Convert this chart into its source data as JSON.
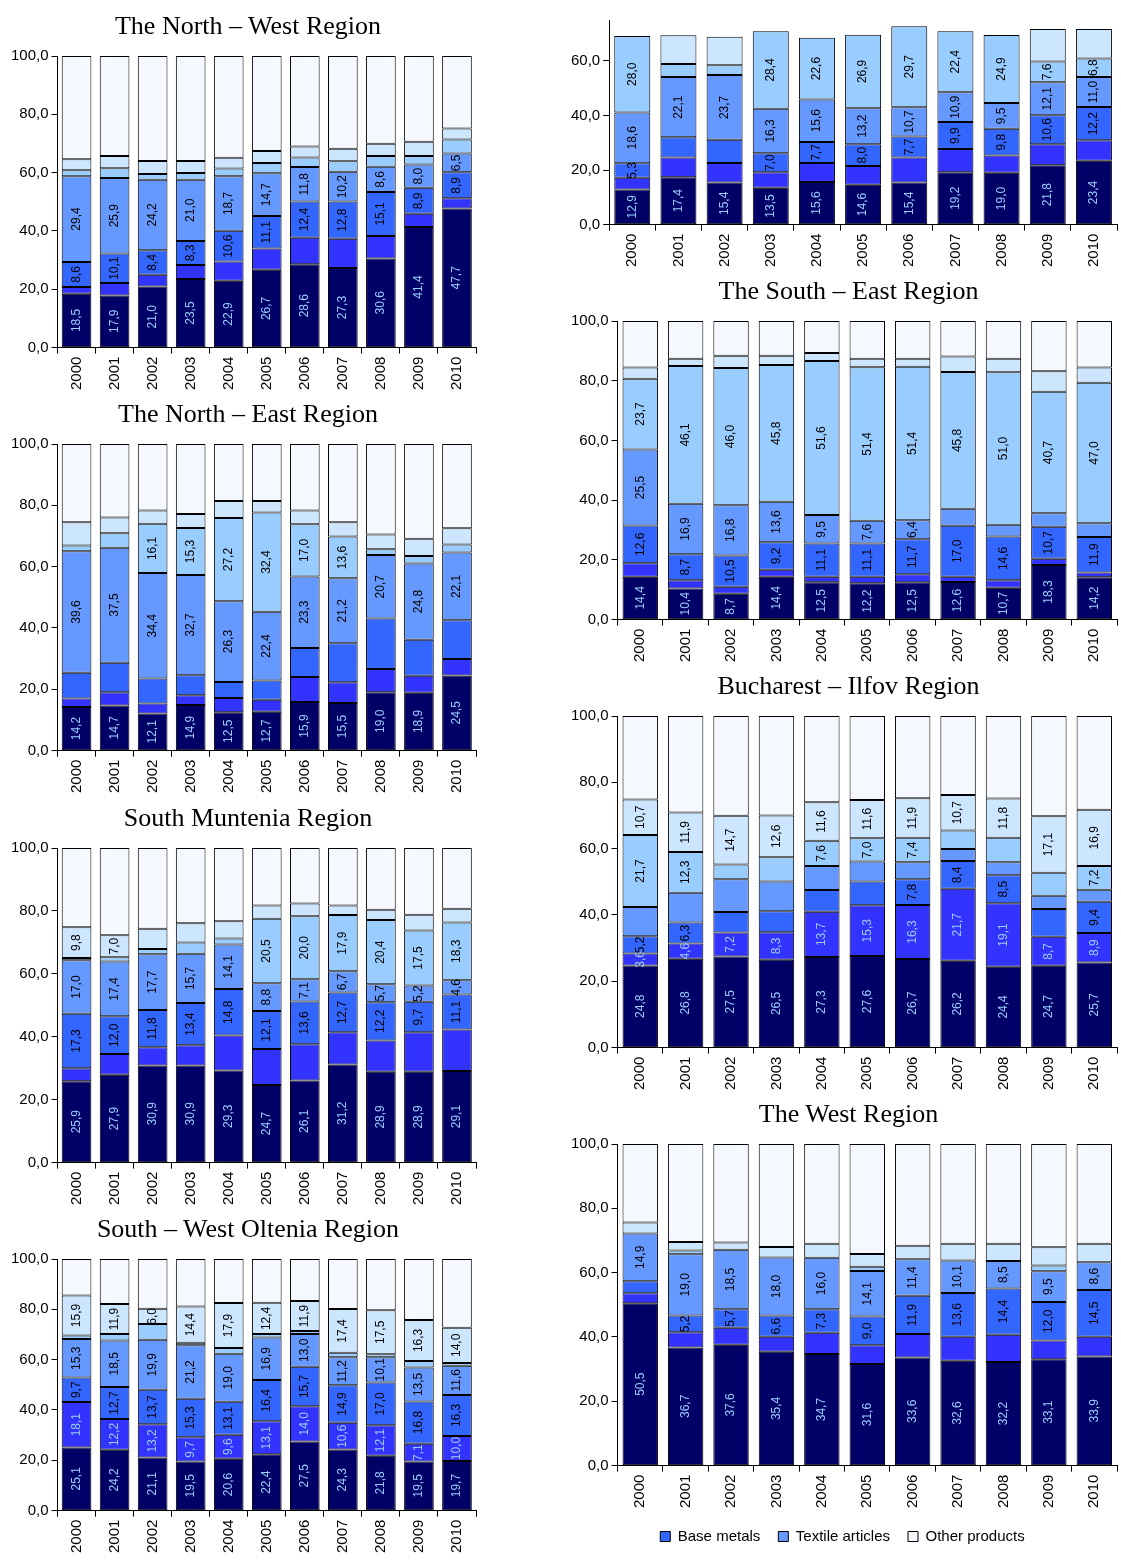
{
  "chart_data": [
    {
      "type": "bar",
      "title": "The North – West Region",
      "categories": [
        "2000",
        "2001",
        "2002",
        "2003",
        "2004",
        "2005",
        "2006",
        "2007",
        "2008",
        "2009",
        "2010"
      ],
      "stacked": true,
      "ylim": [
        0,
        100
      ],
      "yticks": [
        {
          "value": 0,
          "label": "0,0"
        },
        {
          "value": 20,
          "label": "20,0"
        },
        {
          "value": 40,
          "label": "40,0"
        },
        {
          "value": 60,
          "label": "60,0"
        },
        {
          "value": 80,
          "label": "80,0"
        },
        {
          "value": 100,
          "label": "100,0"
        }
      ],
      "series": [
        {
          "color": "#000066",
          "values": [
            18.5,
            17.9,
            21.0,
            23.5,
            22.9,
            26.7,
            28.6,
            27.3,
            30.6,
            41.4,
            47.7
          ],
          "value_labels": [
            "18,5",
            "17,9",
            "21,0",
            "23,5",
            "22,9",
            "26,7",
            "28,6",
            "27,3",
            "30,6",
            "41,4",
            "47,7"
          ]
        },
        {
          "color": "#3333ff",
          "values": [
            2.3,
            4.3,
            4.0,
            4.8,
            6.6,
            7.3,
            9.1,
            10.0,
            7.7,
            4.5,
            3.5
          ]
        },
        {
          "color": "#3366ff",
          "values": [
            8.6,
            10.1,
            8.4,
            8.3,
            10.6,
            11.1,
            12.4,
            12.8,
            15.1,
            8.9,
            8.9
          ],
          "value_labels": [
            "8,6",
            "10,1",
            "8,4",
            "8,3",
            "10,6",
            "11,1",
            "12,4",
            "12,8",
            "15,1",
            "8,9",
            "8,9"
          ]
        },
        {
          "color": "#6699ff",
          "values": [
            29.4,
            25.9,
            24.2,
            21.0,
            18.7,
            14.7,
            11.8,
            10.2,
            8.6,
            8.0,
            6.5
          ],
          "value_labels": [
            "29,4",
            "25,9",
            "24,2",
            "21,0",
            "18,7",
            "14,7",
            "11,8",
            "10,2",
            "8,6",
            "8,0",
            "6,5"
          ]
        },
        {
          "color": "#99ccff",
          "values": [
            2.0,
            3.3,
            1.9,
            2.3,
            2.6,
            3.5,
            3.3,
            3.6,
            3.7,
            2.9,
            4.8
          ]
        },
        {
          "color": "#cce6ff",
          "values": [
            3.8,
            4.2,
            4.5,
            4.1,
            3.7,
            4.1,
            3.8,
            4.3,
            4.2,
            4.9,
            3.7
          ]
        },
        {
          "color": "#f5f9ff",
          "values": [
            35.4,
            34.3,
            36.0,
            36.0,
            34.9,
            32.6,
            31.0,
            31.8,
            30.1,
            29.4,
            24.9
          ]
        }
      ]
    },
    {
      "type": "bar",
      "categories": [
        "2000",
        "2001",
        "2002",
        "2003",
        "2004",
        "2005",
        "2006",
        "2007",
        "2008",
        "2009",
        "2010"
      ],
      "stacked": true,
      "ylim": [
        0,
        75
      ],
      "yticks": [
        {
          "value": 0,
          "label": "0,0"
        },
        {
          "value": 20,
          "label": "20,0"
        },
        {
          "value": 40,
          "label": "40,0"
        },
        {
          "value": 60,
          "label": "60,0"
        }
      ],
      "series": [
        {
          "color": "#000066",
          "values": [
            12.9,
            17.4,
            15.4,
            13.5,
            15.6,
            14.6,
            15.4,
            19.2,
            19.0,
            21.8,
            23.4
          ],
          "value_labels": [
            "12,9",
            "17,4",
            "15,4",
            "13,5",
            "15,6",
            "14,6",
            "15,4",
            "19,2",
            "19,0",
            "21,8",
            "23,4"
          ]
        },
        {
          "color": "#3333ff",
          "values": [
            4.3,
            7.2,
            7.2,
            5.7,
            7.0,
            6.9,
            9.2,
            8.5,
            6.3,
            7.7,
            7.5
          ]
        },
        {
          "color": "#3366ff",
          "values": [
            5.3,
            7.4,
            8.5,
            7.0,
            7.7,
            8.0,
            7.7,
            9.9,
            9.8,
            10.6,
            12.2
          ],
          "value_labels": [
            "5,3",
            null,
            null,
            "7,0",
            "7,7",
            "8,0",
            "7,7",
            "9,9",
            "9,8",
            "10,6",
            "12,2"
          ]
        },
        {
          "color": "#6699ff",
          "values": [
            18.6,
            22.1,
            23.7,
            16.3,
            15.6,
            13.2,
            10.7,
            10.9,
            9.5,
            12.1,
            11.0
          ],
          "value_labels": [
            "18,6",
            "22,1",
            "23,7",
            "16,3",
            "15,6",
            "13,2",
            "10,7",
            "10,9",
            "9,5",
            "12,1",
            "11,0"
          ]
        },
        {
          "color": "#99ccff",
          "values": [
            28.0,
            4.8,
            3.6,
            28.4,
            22.6,
            26.9,
            29.7,
            22.4,
            24.9,
            7.6,
            6.8
          ],
          "value_labels": [
            "28,0",
            null,
            null,
            "28,4",
            "22,6",
            "26,9",
            "29,7",
            "22,4",
            "24,9",
            "7,6",
            "6,8"
          ]
        },
        {
          "color": "#cce6ff",
          "values": [
            null,
            10.5,
            10.5,
            null,
            null,
            null,
            null,
            null,
            null,
            11.9,
            10.8
          ]
        }
      ]
    },
    {
      "type": "bar",
      "title": "The North – East Region",
      "categories": [
        "2000",
        "2001",
        "2002",
        "2003",
        "2004",
        "2005",
        "2006",
        "2007",
        "2008",
        "2009",
        "2010"
      ],
      "stacked": true,
      "ylim": [
        0,
        100
      ],
      "yticks": [
        {
          "value": 0,
          "label": "0,0"
        },
        {
          "value": 20,
          "label": "20,0"
        },
        {
          "value": 40,
          "label": "40,0"
        },
        {
          "value": 60,
          "label": "60,0"
        },
        {
          "value": 80,
          "label": "80,0"
        },
        {
          "value": 100,
          "label": "100,0"
        }
      ],
      "series": [
        {
          "color": "#000066",
          "values": [
            14.2,
            14.7,
            12.1,
            14.9,
            12.5,
            12.7,
            15.9,
            15.5,
            19.0,
            18.9,
            24.5
          ],
          "value_labels": [
            "14,2",
            "14,7",
            "12,1",
            "14,9",
            "12,5",
            "12,7",
            "15,9",
            "15,5",
            "19,0",
            "18,9",
            "24,5"
          ]
        },
        {
          "color": "#3333ff",
          "values": [
            2.8,
            4.3,
            3.3,
            3.2,
            4.7,
            3.9,
            8.1,
            6.8,
            7.6,
            5.5,
            5.4
          ]
        },
        {
          "color": "#3366ff",
          "values": [
            8.4,
            9.7,
            8.1,
            6.5,
            5.2,
            6.3,
            9.5,
            12.7,
            16.5,
            11.8,
            12.6
          ]
        },
        {
          "color": "#6699ff",
          "values": [
            39.6,
            37.5,
            34.4,
            32.7,
            26.3,
            22.4,
            23.3,
            21.2,
            20.7,
            24.8,
            22.1
          ],
          "value_labels": [
            "39,6",
            "37,5",
            "34,4",
            "32,7",
            "26,3",
            "22,4",
            "23,3",
            "21,2",
            "20,7",
            "24,8",
            "22,1"
          ]
        },
        {
          "color": "#99ccff",
          "values": [
            1.9,
            4.7,
            16.1,
            15.3,
            27.2,
            32.4,
            17.0,
            13.6,
            1.9,
            2.5,
            2.6
          ],
          "value_labels": [
            null,
            null,
            "16,1",
            "15,3",
            "27,2",
            "32,4",
            "17,0",
            "13,6",
            null,
            null,
            null
          ]
        },
        {
          "color": "#cce6ff",
          "values": [
            7.6,
            5.1,
            4.3,
            4.6,
            5.5,
            3.7,
            4.5,
            4.7,
            4.8,
            5.6,
            5.3
          ]
        },
        {
          "color": "#f5f9ff",
          "values": [
            25.5,
            24.0,
            21.7,
            22.8,
            18.6,
            18.6,
            21.7,
            25.5,
            29.5,
            30.9,
            27.5
          ]
        }
      ]
    },
    {
      "type": "bar",
      "title": "The South – East Region",
      "categories": [
        "2000",
        "2001",
        "2002",
        "2003",
        "2004",
        "2005",
        "2006",
        "2007",
        "2008",
        "2009",
        "2010"
      ],
      "stacked": true,
      "ylim": [
        0,
        100
      ],
      "yticks": [
        {
          "value": 0,
          "label": "0,0"
        },
        {
          "value": 20,
          "label": "20,0"
        },
        {
          "value": 40,
          "label": "40,0"
        },
        {
          "value": 60,
          "label": "60,0"
        },
        {
          "value": 80,
          "label": "80,0"
        },
        {
          "value": 100,
          "label": "100,0"
        }
      ],
      "series": [
        {
          "color": "#000066",
          "values": [
            14.4,
            10.4,
            8.7,
            14.4,
            12.5,
            12.2,
            12.5,
            12.6,
            10.7,
            18.3,
            14.2
          ],
          "value_labels": [
            "14,4",
            "10,4",
            "8,7",
            "14,4",
            "12,5",
            "12,2",
            "12,5",
            "12,6",
            "10,7",
            "18,3",
            "14,2"
          ]
        },
        {
          "color": "#3333ff",
          "values": [
            4.5,
            2.8,
            2.3,
            2.3,
            1.9,
            2.2,
            2.7,
            1.8,
            2.5,
            2.1,
            1.6
          ]
        },
        {
          "color": "#3366ff",
          "values": [
            12.6,
            8.7,
            10.5,
            9.2,
            11.1,
            11.1,
            11.7,
            17.0,
            14.6,
            10.7,
            11.9
          ],
          "value_labels": [
            "12,6",
            "8,7",
            "10,5",
            "9,2",
            "11,1",
            "11,1",
            "11,7",
            "17,0",
            "14,6",
            "10,7",
            "11,9"
          ]
        },
        {
          "color": "#6699ff",
          "values": [
            25.5,
            16.9,
            16.8,
            13.6,
            9.5,
            7.6,
            6.4,
            5.7,
            4.0,
            4.5,
            4.6
          ],
          "value_labels": [
            "25,5",
            "16,9",
            "16,8",
            "13,6",
            "9,5",
            "7,6",
            "6,4",
            null,
            null,
            null,
            null
          ]
        },
        {
          "color": "#99ccff",
          "values": [
            23.7,
            46.1,
            46.0,
            45.8,
            51.6,
            51.4,
            51.4,
            45.8,
            51.0,
            40.7,
            47.0
          ],
          "value_labels": [
            "23,7",
            "46,1",
            "46,0",
            "45,8",
            "51,6",
            "51,4",
            "51,4",
            "45,8",
            "51,0",
            "40,7",
            "47,0"
          ]
        },
        {
          "color": "#cce6ff",
          "values": [
            3.7,
            2.5,
            4.1,
            3.1,
            2.7,
            2.9,
            2.7,
            5.2,
            4.6,
            6.9,
            5.1
          ]
        },
        {
          "color": "#f5f9ff",
          "values": [
            15.6,
            12.6,
            11.6,
            11.6,
            10.7,
            12.6,
            12.6,
            11.9,
            12.6,
            16.8,
            15.6
          ]
        }
      ]
    },
    {
      "type": "bar",
      "title": "South Muntenia Region",
      "categories": [
        "2000",
        "2001",
        "2002",
        "2003",
        "2004",
        "2005",
        "2006",
        "2007",
        "2008",
        "2009",
        "2010"
      ],
      "stacked": true,
      "ylim": [
        0,
        100
      ],
      "yticks": [
        {
          "value": 0,
          "label": "0,0"
        },
        {
          "value": 20,
          "label": "20,0"
        },
        {
          "value": 40,
          "label": "40,0"
        },
        {
          "value": 60,
          "label": "60,0"
        },
        {
          "value": 80,
          "label": "80,0"
        },
        {
          "value": 100,
          "label": "100,0"
        }
      ],
      "series": [
        {
          "color": "#000066",
          "values": [
            25.9,
            27.9,
            30.9,
            30.9,
            29.3,
            24.7,
            26.1,
            31.2,
            28.9,
            28.9,
            29.1
          ],
          "value_labels": [
            "25,9",
            "27,9",
            "30,9",
            "30,9",
            "29,3",
            "24,7",
            "26,1",
            "31,2",
            "28,9",
            "28,9",
            "29,1"
          ]
        },
        {
          "color": "#3333ff",
          "values": [
            4.1,
            6.6,
            5.8,
            6.4,
            11.1,
            11.4,
            11.5,
            10.2,
            9.9,
            12.5,
            13.2
          ]
        },
        {
          "color": "#3366ff",
          "values": [
            17.3,
            12.0,
            11.8,
            13.4,
            14.8,
            12.1,
            13.6,
            12.7,
            12.2,
            9.7,
            11.1
          ],
          "value_labels": [
            "17,3",
            "12,0",
            "11,8",
            "13,4",
            "14,8",
            "12,1",
            "13,6",
            "12,7",
            "12,2",
            "9,7",
            "11,1"
          ]
        },
        {
          "color": "#6699ff",
          "values": [
            17.0,
            17.4,
            17.7,
            15.7,
            14.1,
            8.8,
            7.1,
            6.7,
            5.7,
            5.2,
            4.6
          ],
          "value_labels": [
            "17,0",
            "17,4",
            "17,7",
            "15,7",
            "14,1",
            "8,8",
            "7,1",
            "6,7",
            "5,7",
            "5,2",
            "4,6"
          ]
        },
        {
          "color": "#99ccff",
          "values": [
            0.7,
            1.4,
            1.7,
            3.6,
            1.9,
            20.5,
            20.0,
            17.9,
            20.4,
            17.5,
            18.3
          ],
          "value_labels": [
            null,
            null,
            null,
            null,
            null,
            "20,5",
            "20,0",
            "17,9",
            "20,4",
            "17,5",
            "18,3"
          ]
        },
        {
          "color": "#cce6ff",
          "values": [
            9.8,
            7.0,
            6.4,
            6.1,
            5.5,
            4.2,
            4.1,
            3.0,
            3.3,
            5.0,
            4.4
          ],
          "value_labels": [
            "9,8",
            "7,0",
            null,
            null,
            null,
            null,
            null,
            null,
            null,
            null,
            null
          ]
        },
        {
          "color": "#f5f9ff",
          "values": [
            25.2,
            27.7,
            25.7,
            23.9,
            23.3,
            18.3,
            17.6,
            18.3,
            19.6,
            21.2,
            19.3
          ]
        }
      ]
    },
    {
      "type": "bar",
      "title": "Bucharest – Ilfov Region",
      "categories": [
        "2000",
        "2001",
        "2002",
        "2003",
        "2004",
        "2005",
        "2006",
        "2007",
        "2008",
        "2009",
        "2010"
      ],
      "stacked": true,
      "ylim": [
        0,
        100
      ],
      "yticks": [
        {
          "value": 0,
          "label": "0,0"
        },
        {
          "value": 20,
          "label": "20,0"
        },
        {
          "value": 40,
          "label": "40,0"
        },
        {
          "value": 60,
          "label": "60,0"
        },
        {
          "value": 80,
          "label": "80,0"
        },
        {
          "value": 100,
          "label": "100,0"
        }
      ],
      "series": [
        {
          "color": "#000066",
          "values": [
            24.8,
            26.8,
            27.5,
            26.5,
            27.3,
            27.6,
            26.7,
            26.2,
            24.4,
            24.7,
            25.7
          ],
          "value_labels": [
            "24,8",
            "26,8",
            "27,5",
            "26,5",
            "27,3",
            "27,6",
            "26,7",
            "26,2",
            "24,4",
            "24,7",
            "25,7"
          ]
        },
        {
          "color": "#3333ff",
          "values": [
            3.6,
            4.6,
            7.2,
            8.3,
            13.7,
            15.3,
            16.3,
            21.7,
            19.1,
            8.7,
            8.9
          ],
          "value_labels": [
            "3,6",
            "4,6",
            "7,2",
            "8,3",
            "13,7",
            "15,3",
            "16,3",
            "21,7",
            "19,1",
            "8,7",
            "8,9"
          ]
        },
        {
          "color": "#3366ff",
          "values": [
            5.2,
            6.3,
            6.2,
            6.3,
            6.5,
            7.2,
            7.8,
            8.4,
            8.5,
            8.4,
            9.4
          ],
          "value_labels": [
            "5,2",
            "6,3",
            null,
            null,
            null,
            null,
            "7,8",
            "8,4",
            "8,5",
            null,
            "9,4"
          ]
        },
        {
          "color": "#6699ff",
          "values": [
            8.8,
            9.0,
            9.9,
            9.0,
            7.3,
            6.0,
            5.1,
            3.6,
            3.9,
            4.0,
            3.6
          ]
        },
        {
          "color": "#99ccff",
          "values": [
            21.7,
            12.3,
            4.4,
            7.3,
            7.6,
            7.0,
            7.4,
            5.6,
            7.4,
            6.9,
            7.2
          ],
          "value_labels": [
            "21,7",
            "12,3",
            null,
            null,
            "7,6",
            "7,0",
            "7,4",
            null,
            null,
            null,
            "7,2"
          ]
        },
        {
          "color": "#cce6ff",
          "values": [
            10.7,
            11.9,
            14.7,
            12.6,
            11.6,
            11.6,
            11.9,
            10.7,
            11.8,
            17.1,
            16.9
          ],
          "value_labels": [
            "10,7",
            "11,9",
            "14,7",
            "12,6",
            "11,6",
            "11,6",
            "11,9",
            "10,7",
            "11,8",
            "17,1",
            "16,9"
          ]
        },
        {
          "color": "#f5f9ff",
          "values": [
            25.2,
            29.1,
            30.1,
            30.0,
            26.0,
            25.3,
            24.8,
            23.8,
            24.9,
            30.2,
            28.3
          ]
        }
      ]
    },
    {
      "type": "bar",
      "title": "South – West Oltenia Region",
      "categories": [
        "2000",
        "2001",
        "2002",
        "2003",
        "2004",
        "2005",
        "2006",
        "2007",
        "2008",
        "2009",
        "2010"
      ],
      "stacked": true,
      "ylim": [
        0,
        100
      ],
      "yticks": [
        {
          "value": 0,
          "label": "0,0"
        },
        {
          "value": 20,
          "label": "20,0"
        },
        {
          "value": 40,
          "label": "40,0"
        },
        {
          "value": 60,
          "label": "60,0"
        },
        {
          "value": 80,
          "label": "80,0"
        },
        {
          "value": 100,
          "label": "100,0"
        }
      ],
      "series": [
        {
          "color": "#000066",
          "values": [
            25.1,
            24.2,
            21.1,
            19.5,
            20.6,
            22.4,
            27.5,
            24.3,
            21.8,
            19.5,
            19.7
          ],
          "value_labels": [
            "25,1",
            "24,2",
            "21,1",
            "19,5",
            "20,6",
            "22,4",
            "27,5",
            "24,3",
            "21,8",
            "19,5",
            "19,7"
          ]
        },
        {
          "color": "#3333ff",
          "values": [
            18.1,
            12.2,
            13.2,
            9.7,
            9.6,
            13.1,
            14.0,
            10.6,
            12.1,
            7.1,
            10.0
          ],
          "value_labels": [
            "18,1",
            "12,2",
            "13,2",
            "9,7",
            "9,6",
            "13,1",
            "14,0",
            "10,6",
            "12,1",
            "7,1",
            "10,0"
          ]
        },
        {
          "color": "#3366ff",
          "values": [
            9.7,
            12.7,
            13.7,
            15.3,
            13.1,
            16.4,
            15.7,
            14.9,
            17.0,
            16.8,
            16.3
          ],
          "value_labels": [
            "9,7",
            "12,7",
            "13,7",
            "15,3",
            "13,1",
            "16,4",
            "15,7",
            "14,9",
            "17,0",
            "16,8",
            "16,3"
          ]
        },
        {
          "color": "#6699ff",
          "values": [
            15.3,
            18.5,
            19.9,
            21.2,
            19.0,
            16.9,
            13.0,
            11.2,
            10.1,
            13.5,
            11.6
          ],
          "value_labels": [
            "15,3",
            "18,5",
            "19,9",
            "21,2",
            "19,0",
            "16,9",
            "13,0",
            "11,2",
            "10,1",
            "13,5",
            "11,6"
          ]
        },
        {
          "color": "#99ccff",
          "values": [
            1.4,
            2.6,
            6.3,
            1.0,
            2.3,
            1.4,
            1.2,
            1.7,
            1.1,
            2.6,
            1.1
          ]
        },
        {
          "color": "#cce6ff",
          "values": [
            15.9,
            11.9,
            6.0,
            14.4,
            17.9,
            12.4,
            11.9,
            17.4,
            17.5,
            16.3,
            14.0
          ],
          "value_labels": [
            "15,9",
            "11,9",
            "6,0",
            "14,4",
            "17,9",
            "12,4",
            "11,9",
            "17,4",
            "17,5",
            "16,3",
            "14,0"
          ]
        },
        {
          "color": "#f5f9ff",
          "values": [
            14.5,
            17.9,
            19.8,
            18.9,
            17.5,
            17.4,
            16.7,
            19.9,
            20.4,
            24.2,
            27.3
          ]
        }
      ]
    },
    {
      "type": "bar",
      "title": "The West Region",
      "categories": [
        "2000",
        "2001",
        "2002",
        "2003",
        "2004",
        "2005",
        "2006",
        "2007",
        "2008",
        "2009",
        "2010"
      ],
      "stacked": true,
      "ylim": [
        0,
        100
      ],
      "yticks": [
        {
          "value": 0,
          "label": "0,0"
        },
        {
          "value": 20,
          "label": "20,0"
        },
        {
          "value": 40,
          "label": "40,0"
        },
        {
          "value": 60,
          "label": "60,0"
        },
        {
          "value": 80,
          "label": "80,0"
        },
        {
          "value": 100,
          "label": "100,0"
        }
      ],
      "legend": "bottom",
      "series": [
        {
          "color": "#000066",
          "values": [
            50.5,
            36.7,
            37.6,
            35.4,
            34.7,
            31.6,
            33.6,
            32.6,
            32.2,
            33.1,
            33.9
          ],
          "value_labels": [
            "50,5",
            "36,7",
            "37,6",
            "35,4",
            "34,7",
            "31,6",
            "33,6",
            "32,6",
            "32,2",
            "33,1",
            "33,9"
          ]
        },
        {
          "color": "#3333ff",
          "values": [
            3.1,
            4.8,
            5.3,
            4.7,
            6.6,
            5.8,
            7.3,
            7.5,
            8.5,
            5.8,
            6.2
          ]
        },
        {
          "name": "Base metals",
          "color": "#3366ff",
          "values": [
            3.7,
            5.2,
            5.7,
            6.6,
            7.3,
            9.0,
            11.9,
            13.6,
            14.4,
            12.0,
            14.5
          ],
          "value_labels": [
            null,
            "5,2",
            "5,7",
            "6,6",
            "7,3",
            "9,0",
            "11,9",
            "13,6",
            "14,4",
            "12,0",
            "14,5"
          ]
        },
        {
          "name": "Textile articles",
          "color": "#6699ff",
          "values": [
            14.9,
            19.0,
            18.5,
            18.0,
            16.0,
            14.1,
            11.4,
            10.1,
            8.5,
            9.5,
            8.6
          ],
          "value_labels": [
            "14,9",
            "19,0",
            "18,5",
            "18,0",
            "16,0",
            "14,1",
            "11,4",
            "10,1",
            "8,5",
            "9,5",
            "8,6"
          ]
        },
        {
          "color": "#99ccff",
          "values": [
            null,
            1.2,
            null,
            null,
            null,
            1.3,
            null,
            null,
            null,
            1.8,
            null
          ]
        },
        {
          "color": "#cce6ff",
          "values": [
            3.4,
            2.6,
            2.3,
            3.3,
            4.4,
            4.0,
            4.2,
            5.2,
            5.4,
            5.7,
            5.8
          ]
        },
        {
          "name": "Other products",
          "color": "#f5f9ff",
          "values": [
            24.4,
            30.5,
            30.6,
            32.0,
            31.0,
            34.2,
            31.6,
            31.0,
            31.0,
            32.1,
            31.0
          ]
        }
      ]
    }
  ]
}
